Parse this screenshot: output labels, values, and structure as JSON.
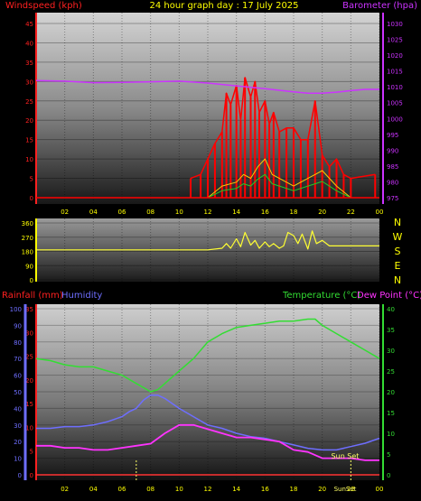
{
  "header": {
    "wind_label": "Windspeed (kph)",
    "title": "24 hour graph day : 17 July 2025",
    "baro_label": "Barometer (hpa)"
  },
  "mid": {
    "compass": [
      "N",
      "W",
      "S",
      "E",
      "N"
    ]
  },
  "bottom_header": {
    "rain_label": "Rainfall (mm)",
    "hum_label": "Humidity",
    "temp_label": "Temperature (°C)",
    "dew_label": "Dew Point (°C)"
  },
  "annotations": {
    "sunset": "Sun Set",
    "sunset_axis": "SunSet"
  },
  "colors": {
    "wind": "#ff0000",
    "gust_bg": "#ff0000",
    "baro": "#cc33ff",
    "direction": "#ffff33",
    "humidity": "#6e6eff",
    "temperature": "#33dd33",
    "dewpoint": "#ff33ff",
    "rain": "#ff3333"
  },
  "chart_data": [
    {
      "type": "line",
      "name": "wind_baro",
      "x_ticks": [
        "02",
        "04",
        "06",
        "08",
        "10",
        "12",
        "14",
        "16",
        "18",
        "20",
        "22",
        "00"
      ],
      "ylim_left": [
        0,
        45
      ],
      "yticks_left": [
        0,
        5,
        10,
        15,
        20,
        25,
        30,
        35,
        40,
        45
      ],
      "ylim_right": [
        975,
        1030
      ],
      "yticks_right": [
        975,
        980,
        985,
        990,
        995,
        1000,
        1005,
        1010,
        1015,
        1020,
        1025,
        1030
      ],
      "series": [
        {
          "key": "baro",
          "x": [
            0,
            2,
            4,
            6,
            8,
            10,
            12,
            14,
            16,
            18,
            19,
            20,
            21,
            22,
            23,
            24
          ],
          "values": [
            1012,
            1011.8,
            1011.3,
            1011.4,
            1011.6,
            1011.8,
            1011.2,
            1010.3,
            1009.4,
            1008.4,
            1008,
            1008,
            1008.3,
            1008.8,
            1009.2,
            1009.2
          ]
        },
        {
          "key": "wind_avg",
          "x": [
            0,
            12,
            13,
            14,
            14.5,
            15,
            15.5,
            16,
            16.5,
            17,
            18,
            19,
            19.5,
            20,
            21,
            22,
            24
          ],
          "values": [
            0,
            0,
            3,
            4,
            6,
            5,
            8,
            10,
            6,
            5,
            3,
            5,
            6,
            7,
            3,
            0,
            0
          ]
        },
        {
          "key": "wind_gust",
          "x": [
            10.8,
            11.5,
            12,
            12.5,
            13,
            13.3,
            13.6,
            14,
            14.3,
            14.6,
            15,
            15.3,
            15.6,
            16,
            16.3,
            16.6,
            17,
            17.5,
            18,
            18.5,
            19,
            19.5,
            20,
            20.5,
            21,
            21.5,
            22,
            23.7
          ],
          "values": [
            5,
            6,
            10,
            14,
            17,
            27,
            24,
            29,
            20,
            31,
            26,
            30,
            22,
            25,
            19,
            22,
            17,
            18,
            18,
            15,
            15,
            25,
            11,
            8,
            10,
            6,
            5,
            6
          ]
        }
      ]
    },
    {
      "type": "line",
      "name": "wind_direction",
      "ylim": [
        0,
        360
      ],
      "yticks": [
        0,
        90,
        180,
        270,
        360
      ],
      "series": [
        {
          "key": "direction",
          "x": [
            0,
            12,
            13,
            13.3,
            13.6,
            14,
            14.3,
            14.6,
            15,
            15.3,
            15.6,
            16,
            16.3,
            16.6,
            17,
            17.3,
            17.6,
            18,
            18.3,
            18.6,
            19,
            19.3,
            19.6,
            20,
            20.5,
            24
          ],
          "values": [
            190,
            190,
            200,
            230,
            200,
            260,
            210,
            300,
            220,
            250,
            200,
            240,
            210,
            230,
            200,
            215,
            300,
            280,
            230,
            290,
            195,
            310,
            230,
            250,
            215,
            215
          ]
        }
      ]
    },
    {
      "type": "line",
      "name": "rain_humidity_temp",
      "ylim_rain": [
        0,
        35
      ],
      "yticks_rain": [
        0,
        5,
        10,
        15,
        20,
        25,
        30,
        35
      ],
      "ylim_hum": [
        0,
        100
      ],
      "yticks_hum": [
        0,
        10,
        20,
        30,
        40,
        50,
        60,
        70,
        80,
        90,
        100
      ],
      "ylim_temp": [
        0,
        40
      ],
      "yticks_temp": [
        0,
        5,
        10,
        15,
        20,
        25,
        30,
        35,
        40
      ],
      "series": [
        {
          "key": "temperature",
          "x": [
            0,
            1,
            2,
            3,
            4,
            5,
            6,
            7,
            7.5,
            8,
            8.5,
            9,
            10,
            11,
            12,
            13,
            14,
            15,
            16,
            17,
            18,
            19,
            19.5,
            20,
            21,
            22,
            23,
            24
          ],
          "values": [
            28,
            27.5,
            26.5,
            26,
            26,
            25,
            24,
            22,
            21,
            20,
            20.5,
            22,
            25,
            28,
            32,
            34,
            35.5,
            36,
            36.5,
            37,
            37,
            37.5,
            37.5,
            36,
            34,
            32,
            30,
            28
          ]
        },
        {
          "key": "humidity",
          "x": [
            0,
            1,
            2,
            3,
            4,
            5,
            6,
            6.5,
            7,
            7.5,
            8,
            8.5,
            9,
            9.5,
            10,
            11,
            12,
            13,
            14,
            15,
            16,
            17,
            18,
            19,
            20,
            21,
            22,
            23,
            24
          ],
          "values": [
            28,
            28,
            29,
            29,
            30,
            32,
            35,
            38,
            40,
            45,
            48,
            48,
            46,
            43,
            40,
            35,
            30,
            28,
            25,
            23,
            22,
            20,
            18,
            16,
            15,
            15,
            17,
            19,
            22
          ]
        },
        {
          "key": "dewpoint",
          "x": [
            0,
            1,
            2,
            3,
            4,
            5,
            6,
            7,
            8,
            9,
            10,
            11,
            12,
            13,
            14,
            15,
            16,
            17,
            18,
            19,
            20,
            21,
            22,
            23,
            24
          ],
          "values": [
            7,
            7,
            6.5,
            6.5,
            6,
            6,
            6.5,
            7,
            7.5,
            10,
            12,
            12,
            11,
            10,
            9,
            9,
            8.5,
            8,
            6,
            5.5,
            4,
            4,
            4,
            3.5,
            3.5
          ]
        },
        {
          "key": "rain",
          "x": [
            0,
            24
          ],
          "values": [
            0,
            0
          ]
        }
      ],
      "markers": [
        7,
        22
      ]
    }
  ]
}
